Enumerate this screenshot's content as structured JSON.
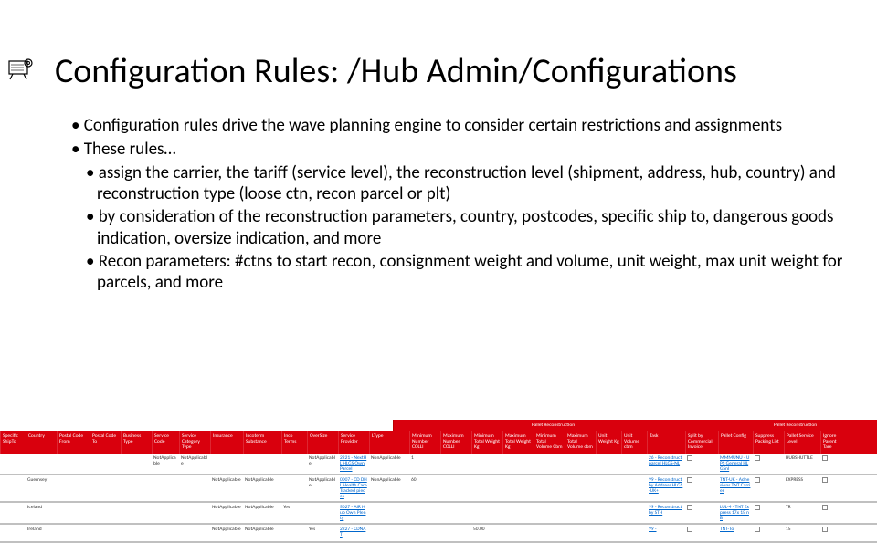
{
  "icon": "projector",
  "title": "Configuration Rules: /Hub Admin/Configurations",
  "bullets_l1": [
    "Configuration rules drive the wave planning engine to consider certain restrictions and assignments",
    "These rules…"
  ],
  "bullets_l2": [
    "assign the carrier, the tariff (service level), the reconstruction level (shipment, address, hub, country) and reconstruction type (loose ctn, recon parcel or plt)",
    "by consideration of the reconstruction parameters, country, postcodes, specific ship to, dangerous goods indication, oversize indication, and more",
    "Recon parameters: #ctns to start recon, consignment weight and volume, unit weight, max unit weight for parcels, and more"
  ],
  "table": {
    "section_headers": [
      "Pallet Reconstruction",
      "Pallet Reconstruction"
    ],
    "columns": [
      "Specific ShipTo",
      "Country",
      "Postal Code From",
      "Postal Code To",
      "Business Type",
      "Service Code",
      "Service Category Type",
      "Insurance",
      "Incoterm Substance",
      "Inco Terms",
      "OverSize",
      "Service Provider",
      "LType",
      "Minimum Number COLLI",
      "Maximum Number COLLI",
      "Minimum Total Weight Kg",
      "Maximum Total Weight Kg",
      "Minimum Total Volume Cbm",
      "Maximum Total Volume cbm",
      "Unit Weight Kg",
      "Unit Volume cbm",
      "Task",
      "Split by Commercial Invoice",
      "Pallet Config",
      "Suppress Packing List",
      "Pallet Service Level",
      "Ignore Parent Tare"
    ],
    "rows": [
      {
        "cells": [
          "",
          "",
          "",
          "",
          "",
          "NotApplicable",
          "NotApplicable",
          "",
          "",
          "",
          "NotApplicable",
          "2221 - NextHL HLGS Own Parcel",
          "NonApplicable",
          "1",
          "",
          "",
          "",
          "",
          "",
          "",
          "",
          "26 - Reconstruct parcel HLGS-NL",
          "",
          "MMMUNU - UPS General HLGSnl",
          "",
          "HUBSHUTTLE",
          ""
        ],
        "link_cols": [
          11,
          21,
          23
        ],
        "check_cols": [
          22,
          24,
          26
        ]
      },
      {
        "cells": [
          "",
          "Guernsey",
          "",
          "",
          "",
          "",
          "",
          "NotApplicable",
          "NotApplicable",
          "",
          "NotApplicable",
          "0007 - CD DHL Health Care Tracked pieces",
          "NonApplicable",
          "60",
          "",
          "",
          "",
          "",
          "",
          "",
          "",
          "99 - Reconstruct by Address HLGS-UK+",
          "",
          "TNT-UK - Adhesions TNT Carrier",
          "",
          "EXPRESS",
          ""
        ],
        "link_cols": [
          11,
          21,
          23
        ],
        "check_cols": [
          22,
          24,
          26
        ]
      },
      {
        "cells": [
          "",
          "Iceland",
          "",
          "",
          "",
          "",
          "",
          "NotApplicable",
          "NotApplicable",
          "Yes",
          "",
          "5027 - AIR Hub Own Plenty",
          "",
          "",
          "",
          "",
          "",
          "",
          "",
          "",
          "",
          "99 - Reconstruct by STH",
          "",
          "LUL-4 - TNT Express 17x 15 nB",
          "",
          "TR",
          ""
        ],
        "link_cols": [
          11,
          21,
          23
        ],
        "check_cols": [
          22,
          24,
          26
        ]
      },
      {
        "cells": [
          "",
          "Ireland",
          "",
          "",
          "",
          "",
          "",
          "NotApplicable",
          "NotApplicable",
          "",
          "Yes",
          "2227 - CDNAT",
          "",
          "",
          "",
          "50.00",
          "",
          "",
          "",
          "",
          "",
          "99 -",
          "",
          "TNT-To",
          "",
          "15",
          ""
        ],
        "link_cols": [
          11,
          21,
          23
        ],
        "check_cols": [
          22,
          24,
          26
        ]
      }
    ],
    "colors": {
      "header_bg": "#d9000d",
      "header_fg": "#ffffff",
      "row_border": "#c0c0c0",
      "link": "#0066cc"
    }
  }
}
